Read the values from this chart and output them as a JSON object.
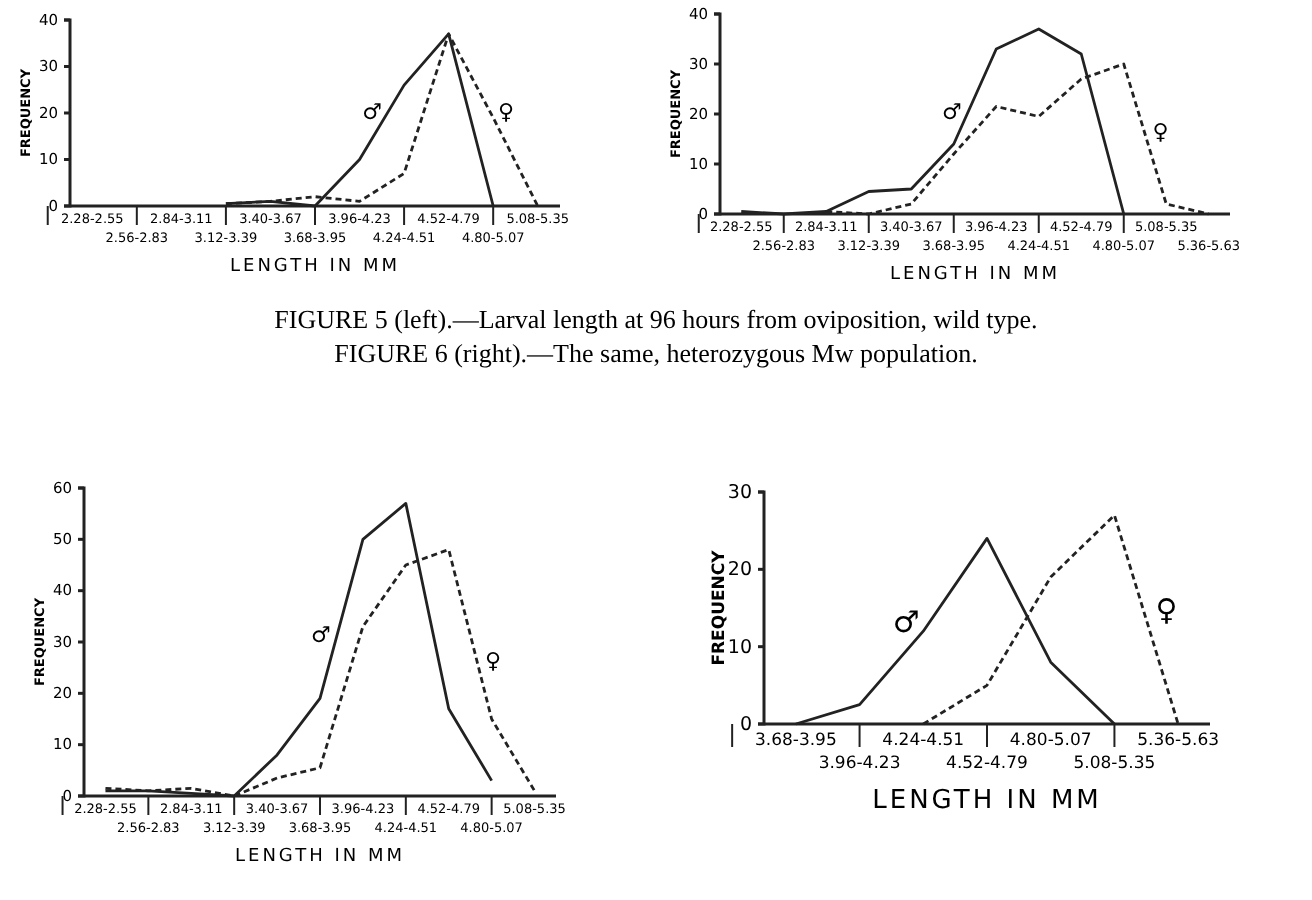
{
  "chart_data": [
    {
      "type": "line",
      "categories": [
        "2.28-2.55",
        "2.56-2.83",
        "2.84-3.11",
        "3.12-3.39",
        "3.40-3.67",
        "3.68-3.95",
        "3.96-4.23",
        "4.24-4.51",
        "4.52-4.79",
        "4.80-5.07",
        "5.08-5.35"
      ],
      "series": [
        {
          "name": "♂",
          "color": "#222222",
          "line_style": "solid",
          "values": [
            null,
            null,
            null,
            0.5,
            1,
            0,
            10,
            26,
            37,
            0,
            null
          ]
        },
        {
          "name": "♀",
          "color": "#222222",
          "line_style": "dashed",
          "values": [
            null,
            null,
            null,
            0.5,
            1,
            2,
            1,
            7,
            37,
            19,
            0
          ]
        }
      ],
      "ylim": [
        0,
        40
      ],
      "yticks": [
        0,
        10,
        20,
        30,
        40
      ],
      "xlabel": "LENGTH IN MM",
      "ylabel": "FREQUENCY",
      "annotations": [
        "FIGURE 5 (left).—Larval length at 96 hours from oviposition, wild type.",
        "FIGURE 6 (right).—The same, heterozygous Mw population."
      ]
    },
    {
      "type": "line",
      "categories": [
        "2.28-2.55",
        "2.56-2.83",
        "2.84-3.11",
        "3.12-3.39",
        "3.40-3.67",
        "3.68-3.95",
        "3.96-4.23",
        "4.24-4.51",
        "4.52-4.79",
        "4.80-5.07",
        "5.08-5.35",
        "5.36-5.63"
      ],
      "series": [
        {
          "name": "♂",
          "color": "#222222",
          "line_style": "solid",
          "values": [
            0.5,
            0,
            0.5,
            4.5,
            5,
            14,
            33,
            37,
            32,
            0,
            null,
            null
          ]
        },
        {
          "name": "♀",
          "color": "#222222",
          "line_style": "dashed",
          "values": [
            null,
            null,
            0.5,
            0,
            2,
            12,
            21.5,
            19.5,
            27,
            30,
            2,
            0
          ]
        }
      ],
      "ylim": [
        0,
        40
      ],
      "yticks": [
        0,
        10,
        20,
        30,
        40
      ],
      "xlabel": "LENGTH IN MM",
      "ylabel": "FREQUENCY"
    },
    {
      "type": "line",
      "categories": [
        "2.28-2.55",
        "2.56-2.83",
        "2.84-3.11",
        "3.12-3.39",
        "3.40-3.67",
        "3.68-3.95",
        "3.96-4.23",
        "4.24-4.51",
        "4.52-4.79",
        "4.80-5.07",
        "5.08-5.35"
      ],
      "series": [
        {
          "name": "♂",
          "color": "#222222",
          "line_style": "solid",
          "values": [
            1,
            1,
            0.5,
            0,
            8,
            19,
            50,
            57,
            17,
            3,
            null
          ]
        },
        {
          "name": "♀",
          "color": "#222222",
          "line_style": "dashed",
          "values": [
            1.5,
            1,
            1.5,
            0,
            3.5,
            5.5,
            33,
            45,
            48,
            15,
            1
          ]
        }
      ],
      "ylim": [
        0,
        60
      ],
      "yticks": [
        0,
        10,
        20,
        30,
        40,
        50,
        60
      ],
      "xlabel": "LENGTH IN MM",
      "ylabel": "FREQUENCY"
    },
    {
      "type": "line",
      "categories": [
        "3.68-3.95",
        "3.96-4.23",
        "4.24-4.51",
        "4.52-4.79",
        "4.80-5.07",
        "5.08-5.35",
        "5.36-5.63"
      ],
      "series": [
        {
          "name": "♂",
          "color": "#222222",
          "line_style": "solid",
          "values": [
            0,
            2.5,
            12,
            24,
            8,
            0,
            null
          ]
        },
        {
          "name": "♀",
          "color": "#222222",
          "line_style": "dashed",
          "values": [
            null,
            null,
            0,
            5,
            19,
            27,
            0
          ]
        }
      ],
      "ylim": [
        0,
        30
      ],
      "yticks": [
        0,
        10,
        20,
        30
      ],
      "xlabel": "LENGTH IN MM",
      "ylabel": "FREQUENCY"
    }
  ]
}
